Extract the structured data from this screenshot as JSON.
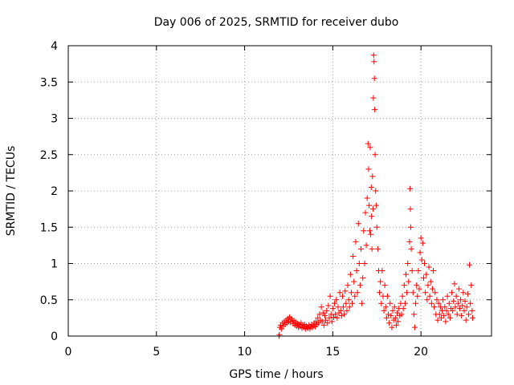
{
  "chart_data": {
    "type": "scatter",
    "title": "Day 006 of 2025, SRMTID for receiver dubo",
    "xlabel": "GPS time / hours",
    "ylabel": "SRMTID / TECUs",
    "xlim": [
      0,
      24
    ],
    "ylim": [
      0,
      4
    ],
    "x_ticks": [
      0,
      5,
      10,
      15,
      20
    ],
    "x_tick_labels": [
      "0",
      "5",
      "10",
      "15",
      "20"
    ],
    "y_ticks": [
      0,
      0.5,
      1,
      1.5,
      2,
      2.5,
      3,
      3.5,
      4
    ],
    "y_tick_labels": [
      "0",
      "0.5",
      "1",
      "1.5",
      "2",
      "2.5",
      "3",
      "3.5",
      "4"
    ],
    "grid": true,
    "marker": "+",
    "color": "#ff0000",
    "series": [
      {
        "name": "SRMTID",
        "points": [
          [
            11.95,
            0.0
          ],
          [
            11.97,
            0.02
          ],
          [
            12.0,
            0.12
          ],
          [
            12.05,
            0.15
          ],
          [
            12.1,
            0.1
          ],
          [
            12.15,
            0.18
          ],
          [
            12.2,
            0.14
          ],
          [
            12.25,
            0.2
          ],
          [
            12.3,
            0.16
          ],
          [
            12.35,
            0.22
          ],
          [
            12.4,
            0.18
          ],
          [
            12.45,
            0.24
          ],
          [
            12.5,
            0.2
          ],
          [
            12.55,
            0.26
          ],
          [
            12.6,
            0.19
          ],
          [
            12.65,
            0.24
          ],
          [
            12.7,
            0.22
          ],
          [
            12.75,
            0.17
          ],
          [
            12.8,
            0.21
          ],
          [
            12.85,
            0.15
          ],
          [
            12.9,
            0.19
          ],
          [
            12.95,
            0.14
          ],
          [
            13.0,
            0.17
          ],
          [
            13.05,
            0.12
          ],
          [
            13.1,
            0.16
          ],
          [
            13.15,
            0.13
          ],
          [
            13.2,
            0.18
          ],
          [
            13.25,
            0.11
          ],
          [
            13.3,
            0.15
          ],
          [
            13.35,
            0.12
          ],
          [
            13.4,
            0.16
          ],
          [
            13.45,
            0.1
          ],
          [
            13.5,
            0.14
          ],
          [
            13.55,
            0.12
          ],
          [
            13.6,
            0.11
          ],
          [
            13.65,
            0.15
          ],
          [
            13.7,
            0.1
          ],
          [
            13.75,
            0.13
          ],
          [
            13.8,
            0.16
          ],
          [
            13.85,
            0.12
          ],
          [
            13.9,
            0.14
          ],
          [
            13.95,
            0.18
          ],
          [
            14.0,
            0.13
          ],
          [
            14.05,
            0.2
          ],
          [
            14.1,
            0.16
          ],
          [
            14.15,
            0.25
          ],
          [
            14.2,
            0.18
          ],
          [
            14.25,
            0.3
          ],
          [
            14.3,
            0.22
          ],
          [
            14.35,
            0.4
          ],
          [
            14.4,
            0.2
          ],
          [
            14.45,
            0.32
          ],
          [
            14.5,
            0.15
          ],
          [
            14.55,
            0.28
          ],
          [
            14.6,
            0.22
          ],
          [
            14.65,
            0.35
          ],
          [
            14.7,
            0.18
          ],
          [
            14.75,
            0.42
          ],
          [
            14.8,
            0.25
          ],
          [
            14.85,
            0.55
          ],
          [
            14.9,
            0.3
          ],
          [
            14.95,
            0.2
          ],
          [
            15.0,
            0.38
          ],
          [
            15.05,
            0.26
          ],
          [
            15.1,
            0.45
          ],
          [
            15.15,
            0.3
          ],
          [
            15.2,
            0.5
          ],
          [
            15.25,
            0.25
          ],
          [
            15.3,
            0.4
          ],
          [
            15.35,
            0.32
          ],
          [
            15.4,
            0.6
          ],
          [
            15.45,
            0.35
          ],
          [
            15.5,
            0.28
          ],
          [
            15.55,
            0.55
          ],
          [
            15.6,
            0.4
          ],
          [
            15.65,
            0.3
          ],
          [
            15.7,
            0.62
          ],
          [
            15.75,
            0.45
          ],
          [
            15.8,
            0.35
          ],
          [
            15.85,
            0.7
          ],
          [
            15.9,
            0.5
          ],
          [
            15.95,
            0.4
          ],
          [
            16.0,
            0.85
          ],
          [
            16.05,
            0.6
          ],
          [
            16.1,
            0.45
          ],
          [
            16.15,
            1.1
          ],
          [
            16.2,
            0.75
          ],
          [
            16.25,
            0.55
          ],
          [
            16.3,
            1.3
          ],
          [
            16.35,
            0.9
          ],
          [
            16.4,
            0.6
          ],
          [
            16.45,
            1.55
          ],
          [
            16.5,
            1.0
          ],
          [
            16.55,
            0.7
          ],
          [
            16.6,
            1.2
          ],
          [
            16.65,
            0.45
          ],
          [
            16.7,
            0.8
          ],
          [
            16.75,
            1.45
          ],
          [
            16.8,
            1.0
          ],
          [
            16.85,
            1.7
          ],
          [
            16.9,
            1.25
          ],
          [
            16.95,
            1.9
          ],
          [
            17.0,
            2.65
          ],
          [
            17.03,
            2.3
          ],
          [
            17.06,
            1.8
          ],
          [
            17.1,
            1.45
          ],
          [
            17.12,
            2.6
          ],
          [
            17.15,
            1.4
          ],
          [
            17.18,
            2.05
          ],
          [
            17.2,
            1.65
          ],
          [
            17.22,
            1.2
          ],
          [
            17.25,
            2.2
          ],
          [
            17.28,
            1.75
          ],
          [
            17.3,
            3.28
          ],
          [
            17.32,
            3.87
          ],
          [
            17.34,
            3.78
          ],
          [
            17.36,
            3.55
          ],
          [
            17.38,
            3.12
          ],
          [
            17.4,
            2.5
          ],
          [
            17.43,
            2.0
          ],
          [
            17.46,
            1.8
          ],
          [
            17.5,
            1.5
          ],
          [
            17.55,
            1.2
          ],
          [
            17.6,
            0.9
          ],
          [
            17.65,
            0.6
          ],
          [
            17.7,
            0.75
          ],
          [
            17.75,
            0.45
          ],
          [
            17.8,
            0.9
          ],
          [
            17.85,
            0.55
          ],
          [
            17.9,
            0.35
          ],
          [
            17.95,
            0.7
          ],
          [
            18.0,
            0.4
          ],
          [
            18.05,
            0.25
          ],
          [
            18.1,
            0.55
          ],
          [
            18.15,
            0.3
          ],
          [
            18.2,
            0.18
          ],
          [
            18.25,
            0.45
          ],
          [
            18.3,
            0.28
          ],
          [
            18.35,
            0.12
          ],
          [
            18.4,
            0.35
          ],
          [
            18.45,
            0.22
          ],
          [
            18.5,
            0.4
          ],
          [
            18.55,
            0.25
          ],
          [
            18.6,
            0.15
          ],
          [
            18.65,
            0.32
          ],
          [
            18.7,
            0.2
          ],
          [
            18.75,
            0.38
          ],
          [
            18.8,
            0.28
          ],
          [
            18.85,
            0.45
          ],
          [
            18.9,
            0.3
          ],
          [
            18.95,
            0.55
          ],
          [
            19.0,
            0.38
          ],
          [
            19.05,
            0.7
          ],
          [
            19.1,
            0.45
          ],
          [
            19.15,
            0.85
          ],
          [
            19.2,
            0.6
          ],
          [
            19.25,
            1.0
          ],
          [
            19.3,
            0.75
          ],
          [
            19.35,
            1.3
          ],
          [
            19.38,
            2.03
          ],
          [
            19.4,
            1.75
          ],
          [
            19.42,
            1.5
          ],
          [
            19.45,
            1.2
          ],
          [
            19.5,
            0.9
          ],
          [
            19.55,
            0.6
          ],
          [
            19.6,
            0.3
          ],
          [
            19.65,
            0.12
          ],
          [
            19.7,
            0.45
          ],
          [
            19.75,
            0.7
          ],
          [
            19.8,
            0.55
          ],
          [
            19.85,
            0.9
          ],
          [
            19.9,
            0.65
          ],
          [
            19.95,
            1.15
          ],
          [
            20.0,
            1.35
          ],
          [
            20.05,
            1.05
          ],
          [
            20.1,
            1.28
          ],
          [
            20.15,
            0.8
          ],
          [
            20.2,
            1.0
          ],
          [
            20.25,
            0.6
          ],
          [
            20.3,
            0.85
          ],
          [
            20.35,
            0.5
          ],
          [
            20.4,
            0.7
          ],
          [
            20.45,
            0.95
          ],
          [
            20.5,
            0.55
          ],
          [
            20.55,
            0.75
          ],
          [
            20.6,
            0.45
          ],
          [
            20.65,
            0.65
          ],
          [
            20.7,
            0.9
          ],
          [
            20.75,
            0.4
          ],
          [
            20.8,
            0.6
          ],
          [
            20.85,
            0.3
          ],
          [
            20.9,
            0.5
          ],
          [
            20.95,
            0.22
          ],
          [
            21.0,
            0.45
          ],
          [
            21.05,
            0.3
          ],
          [
            21.1,
            0.4
          ],
          [
            21.15,
            0.25
          ],
          [
            21.2,
            0.35
          ],
          [
            21.25,
            0.5
          ],
          [
            21.3,
            0.28
          ],
          [
            21.35,
            0.4
          ],
          [
            21.4,
            0.2
          ],
          [
            21.45,
            0.35
          ],
          [
            21.5,
            0.55
          ],
          [
            21.55,
            0.3
          ],
          [
            21.6,
            0.45
          ],
          [
            21.65,
            0.25
          ],
          [
            21.7,
            0.38
          ],
          [
            21.75,
            0.6
          ],
          [
            21.8,
            0.35
          ],
          [
            21.85,
            0.48
          ],
          [
            21.9,
            0.72
          ],
          [
            21.95,
            0.4
          ],
          [
            22.0,
            0.55
          ],
          [
            22.05,
            0.3
          ],
          [
            22.1,
            0.45
          ],
          [
            22.15,
            0.65
          ],
          [
            22.2,
            0.38
          ],
          [
            22.25,
            0.5
          ],
          [
            22.3,
            0.28
          ],
          [
            22.35,
            0.42
          ],
          [
            22.4,
            0.6
          ],
          [
            22.45,
            0.35
          ],
          [
            22.5,
            0.48
          ],
          [
            22.55,
            0.22
          ],
          [
            22.6,
            0.4
          ],
          [
            22.65,
            0.58
          ],
          [
            22.7,
            0.3
          ],
          [
            22.75,
            0.98
          ],
          [
            22.8,
            0.45
          ],
          [
            22.85,
            0.7
          ],
          [
            22.9,
            0.35
          ],
          [
            22.93,
            0.25
          ]
        ]
      }
    ]
  }
}
